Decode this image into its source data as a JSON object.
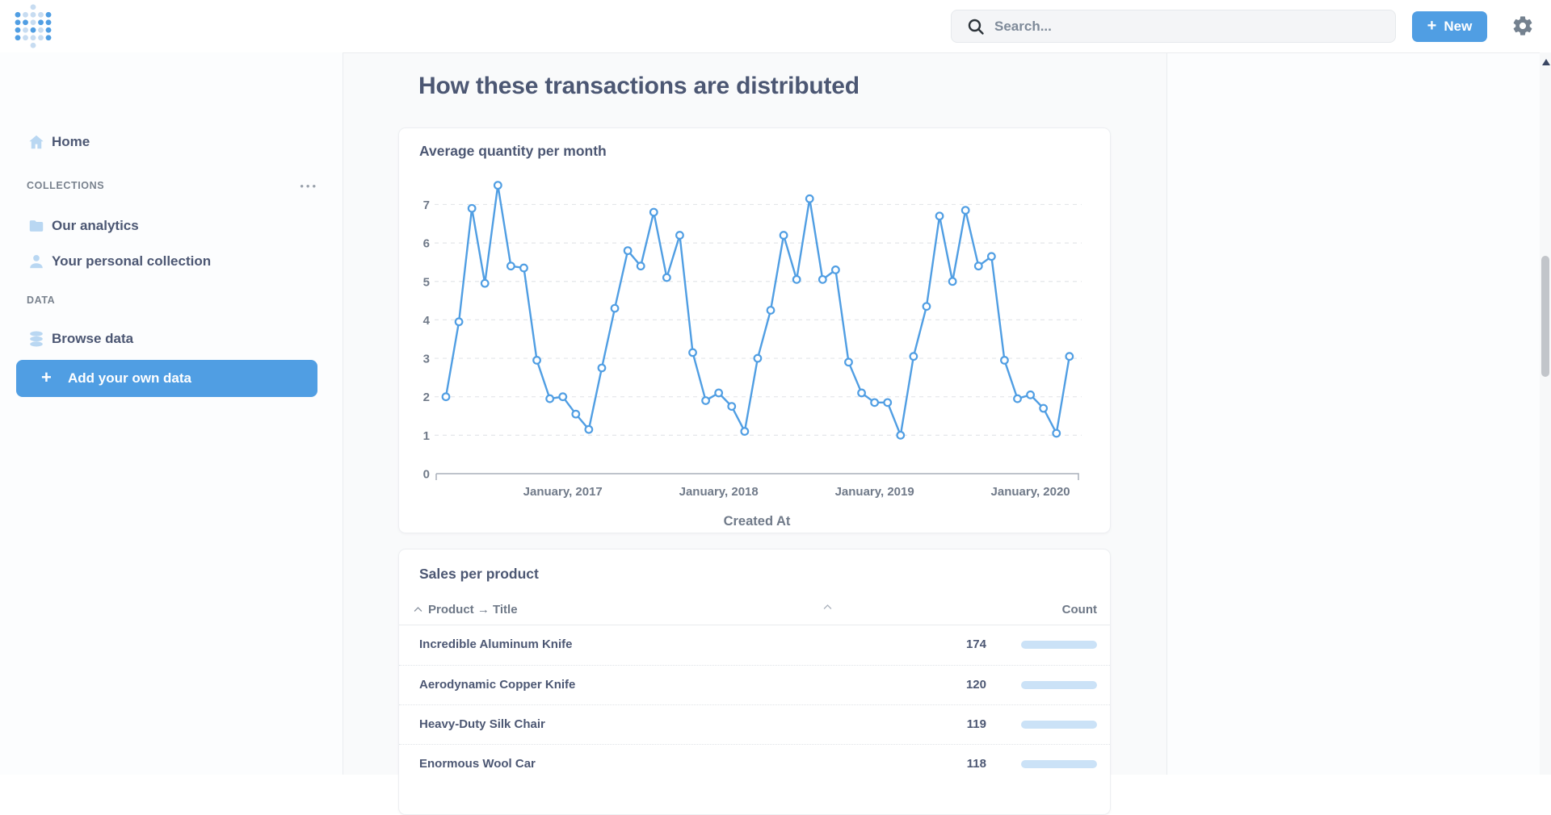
{
  "navbar": {
    "search_placeholder": "Search...",
    "new_label": "New",
    "new_plus": "+"
  },
  "sidebar": {
    "home_label": "Home",
    "collections_title": "COLLECTIONS",
    "collections_menu": "•••",
    "collections_items": [
      {
        "label": "Our analytics",
        "icon": "folder-icon"
      },
      {
        "label": "Your personal collection",
        "icon": "person-icon"
      }
    ],
    "data_title": "DATA",
    "data_items": [
      {
        "label": "Browse data",
        "icon": "database-icon"
      }
    ],
    "add_data_plus": "+",
    "add_data_label": "Add your own data"
  },
  "main": {
    "heading": "How these transactions are distributed"
  },
  "chart_card": {
    "title": "Average quantity per month"
  },
  "chart_data": {
    "type": "line",
    "title": "Average quantity per month",
    "xlabel": "Created At",
    "ylabel": "",
    "ylim": [
      0,
      7.5
    ],
    "yticks": [
      0,
      1,
      2,
      3,
      4,
      5,
      6,
      7
    ],
    "grid": "dashed-horizontal",
    "legend": false,
    "line_color": "#509EE3",
    "x": [
      "2016-04",
      "2016-05",
      "2016-06",
      "2016-07",
      "2016-08",
      "2016-09",
      "2016-10",
      "2016-11",
      "2016-12",
      "2017-01",
      "2017-02",
      "2017-03",
      "2017-04",
      "2017-05",
      "2017-06",
      "2017-07",
      "2017-08",
      "2017-09",
      "2017-10",
      "2017-11",
      "2017-12",
      "2018-01",
      "2018-02",
      "2018-03",
      "2018-04",
      "2018-05",
      "2018-06",
      "2018-07",
      "2018-08",
      "2018-09",
      "2018-10",
      "2018-11",
      "2018-12",
      "2019-01",
      "2019-02",
      "2019-03",
      "2019-04",
      "2019-05",
      "2019-06",
      "2019-07",
      "2019-08",
      "2019-09",
      "2019-10",
      "2019-11",
      "2019-12",
      "2020-01",
      "2020-02",
      "2020-03",
      "2020-04"
    ],
    "values": [
      2.0,
      3.95,
      6.9,
      4.95,
      7.5,
      5.4,
      5.35,
      2.95,
      1.95,
      2.0,
      1.55,
      1.15,
      2.75,
      4.3,
      5.8,
      5.4,
      6.8,
      5.1,
      6.2,
      3.15,
      1.9,
      2.1,
      1.75,
      1.1,
      3.0,
      4.25,
      6.2,
      5.05,
      7.15,
      5.05,
      5.3,
      2.9,
      2.1,
      1.85,
      1.85,
      1.0,
      3.05,
      4.35,
      6.7,
      5.0,
      6.85,
      5.4,
      5.65,
      2.95,
      1.95,
      2.05,
      1.7,
      1.05,
      3.05
    ],
    "x_tick_labels": [
      "January, 2017",
      "January, 2018",
      "January, 2019",
      "January, 2020"
    ],
    "x_tick_indices": [
      9,
      21,
      33,
      45
    ]
  },
  "table_card": {
    "title": "Sales per product",
    "columns": [
      "Product → Title",
      "Count"
    ],
    "max_count": 174,
    "rows": [
      {
        "product": "Incredible Aluminum Knife",
        "count": 174
      },
      {
        "product": "Aerodynamic Copper Knife",
        "count": 120
      },
      {
        "product": "Heavy-Duty Silk Chair",
        "count": 119
      },
      {
        "product": "Enormous Wool Car",
        "count": 118
      }
    ]
  },
  "colors": {
    "accent": "#509EE3",
    "accent_pale": "#C7DCF1",
    "bar_track": "#CBE2F7",
    "text_dark": "#4C5773",
    "text_gray": "#707A89"
  }
}
